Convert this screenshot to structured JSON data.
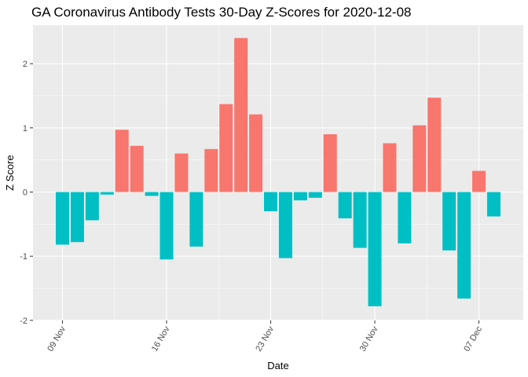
{
  "chart_data": {
    "type": "bar",
    "title": "GA Coronavirus Antibody Tests 30-Day Z-Scores for 2020-12-08",
    "xlabel": "Date",
    "ylabel": "Z Score",
    "x_tick_labels": [
      "09 Nov",
      "16 Nov",
      "23 Nov",
      "30 Nov",
      "07 Dec"
    ],
    "y_tick_labels": [
      "-2",
      "-1",
      "0",
      "1",
      "2"
    ],
    "ylim": [
      -2,
      2.5
    ],
    "grid": true,
    "legend": "none",
    "colors": {
      "positive": "#F8766D",
      "negative": "#00BFC4",
      "panel": "#EBEBEB",
      "grid": "#FFFFFF"
    },
    "dates": [
      "2020-11-09",
      "2020-11-10",
      "2020-11-11",
      "2020-11-12",
      "2020-11-13",
      "2020-11-14",
      "2020-11-15",
      "2020-11-16",
      "2020-11-17",
      "2020-11-18",
      "2020-11-19",
      "2020-11-20",
      "2020-11-21",
      "2020-11-22",
      "2020-11-23",
      "2020-11-24",
      "2020-11-25",
      "2020-11-26",
      "2020-11-27",
      "2020-11-28",
      "2020-11-29",
      "2020-11-30",
      "2020-12-01",
      "2020-12-02",
      "2020-12-03",
      "2020-12-04",
      "2020-12-05",
      "2020-12-06",
      "2020-12-07",
      "2020-12-08"
    ],
    "values": [
      -0.82,
      -0.78,
      -0.44,
      -0.04,
      0.97,
      0.72,
      -0.06,
      -1.05,
      0.6,
      -0.85,
      0.67,
      1.37,
      2.4,
      1.21,
      -0.3,
      -1.03,
      -0.13,
      -0.09,
      0.9,
      -0.41,
      -0.87,
      -1.78,
      0.76,
      -0.8,
      1.04,
      1.47,
      -0.91,
      -1.66,
      0.33,
      -0.38
    ]
  }
}
